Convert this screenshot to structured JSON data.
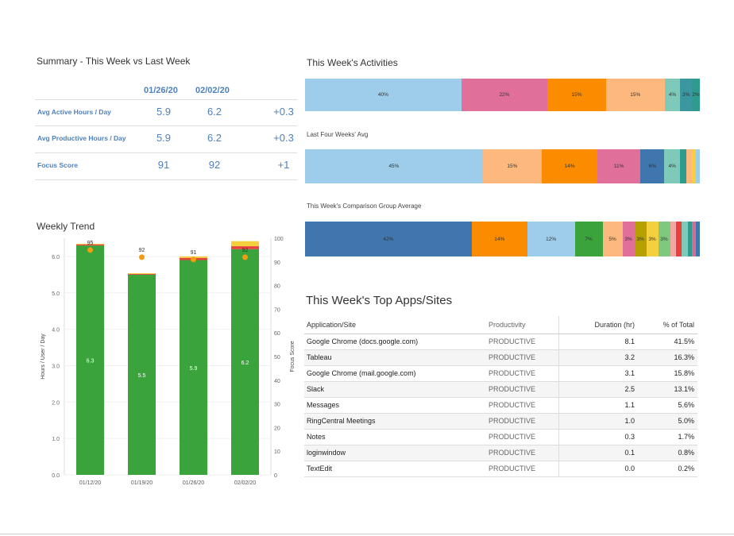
{
  "summary": {
    "title": "Summary - This Week vs Last Week",
    "col1": "01/26/20",
    "col2": "02/02/20",
    "rows": [
      {
        "label": "Avg Active Hours / Day",
        "v1": "5.9",
        "v2": "6.2",
        "diff": "+0.3"
      },
      {
        "label": "Avg Productive Hours / Day",
        "v1": "5.9",
        "v2": "6.2",
        "diff": "+0.3"
      },
      {
        "label": "Focus Score",
        "v1": "91",
        "v2": "92",
        "diff": "+1"
      }
    ]
  },
  "activities": {
    "title": "This Week's Activities",
    "last_four_title": "Last Four Weeks' Avg",
    "comparison_title": "This Week's Comparison Group Average"
  },
  "apps": {
    "title": "This Week's Top Apps/Sites",
    "headers": {
      "app": "Application/Site",
      "prod": "Productivity",
      "dur": "Duration (hr)",
      "pct": "% of Total"
    },
    "rows": [
      {
        "app": "Google Chrome (docs.google.com)",
        "prod": "PRODUCTIVE",
        "dur": "8.1",
        "pct": "41.5%"
      },
      {
        "app": "Tableau",
        "prod": "PRODUCTIVE",
        "dur": "3.2",
        "pct": "16.3%"
      },
      {
        "app": "Google Chrome (mail.google.com)",
        "prod": "PRODUCTIVE",
        "dur": "3.1",
        "pct": "15.8%"
      },
      {
        "app": "Slack",
        "prod": "PRODUCTIVE",
        "dur": "2.5",
        "pct": "13.1%"
      },
      {
        "app": "Messages",
        "prod": "PRODUCTIVE",
        "dur": "1.1",
        "pct": "5.6%"
      },
      {
        "app": "RingCentral Meetings",
        "prod": "PRODUCTIVE",
        "dur": "1.0",
        "pct": "5.0%"
      },
      {
        "app": "Notes",
        "prod": "PRODUCTIVE",
        "dur": "0.3",
        "pct": "1.7%"
      },
      {
        "app": "loginwindow",
        "prod": "PRODUCTIVE",
        "dur": "0.1",
        "pct": "0.8%"
      },
      {
        "app": "TextEdit",
        "prod": "PRODUCTIVE",
        "dur": "0.0",
        "pct": "0.2%"
      }
    ]
  },
  "chart_data": [
    {
      "type": "bar",
      "title": "Weekly Trend",
      "categories": [
        "01/12/20",
        "01/19/20",
        "01/26/20",
        "02/02/20"
      ],
      "ylabel": "Hours / User / Day",
      "y2label": "Focus Score",
      "ylim": [
        0,
        6.5
      ],
      "y2lim": [
        0,
        100
      ],
      "yticks": [
        "0.0",
        "1.0",
        "2.0",
        "3.0",
        "4.0",
        "5.0",
        "6.0"
      ],
      "y2ticks": [
        "0",
        "10",
        "20",
        "30",
        "40",
        "50",
        "60",
        "70",
        "80",
        "90",
        "100"
      ],
      "series": [
        {
          "values": [
            6.3,
            5.5,
            5.9,
            6.2
          ],
          "labels": [
            "6.3",
            "5.5",
            "5.9",
            "6.2"
          ],
          "color": "#3aa33c"
        },
        {
          "values": [
            0.03,
            0.02,
            0.06,
            0.08
          ],
          "color": "#e8403c"
        },
        {
          "values": [
            0.02,
            0.02,
            0.04,
            0.14
          ],
          "color": "#f4d03f"
        }
      ],
      "focus_score": {
        "values": [
          95,
          92,
          91,
          92
        ],
        "labels": [
          "95",
          "92",
          "91",
          "92"
        ],
        "color": "#f39c12"
      },
      "grid": true
    },
    {
      "type": "bar",
      "title": "This Week's Activities",
      "values": [
        40,
        22,
        15,
        15,
        4,
        3,
        2
      ],
      "labels": [
        "40%",
        "22%",
        "15%",
        "15%",
        "4%",
        "3%",
        "2%"
      ],
      "colors": [
        "#9dcdea",
        "#e0709a",
        "#fb8c00",
        "#fdb97d",
        "#7fc9b9",
        "#3a97a0",
        "#2f9a8e"
      ]
    },
    {
      "type": "bar",
      "title": "Last Four Weeks' Avg",
      "values": [
        45,
        15,
        14,
        11,
        6,
        4,
        1.5,
        1.5,
        1,
        1
      ],
      "labels": [
        "45%",
        "15%",
        "14%",
        "11%",
        "6%",
        "4%",
        "",
        "",
        "",
        ""
      ],
      "colors": [
        "#9dcdea",
        "#fdb97d",
        "#fb8c00",
        "#e0709a",
        "#3f76ae",
        "#7fc9b9",
        "#2f9a8e",
        "#fdb97d",
        "#f4d03f",
        "#9dcdea"
      ]
    },
    {
      "type": "bar",
      "title": "This Week's Comparison Group Average",
      "values": [
        42,
        14,
        12,
        7,
        5,
        3,
        3,
        3,
        3,
        1.5,
        1.5,
        1.5,
        1,
        1,
        1
      ],
      "labels": [
        "42%",
        "14%",
        "12%",
        "7%",
        "5%",
        "3%",
        "3%",
        "3%",
        "3%",
        "",
        "",
        "",
        "",
        "",
        ""
      ],
      "colors": [
        "#3f76ae",
        "#fb8c00",
        "#9dcdea",
        "#3aa33c",
        "#fdb97d",
        "#e0709a",
        "#b5a000",
        "#f4d03f",
        "#7fc97f",
        "#f4a6a6",
        "#e8403c",
        "#7fc9b9",
        "#2f9a8e",
        "#d07090",
        "#3f76ae"
      ]
    }
  ]
}
